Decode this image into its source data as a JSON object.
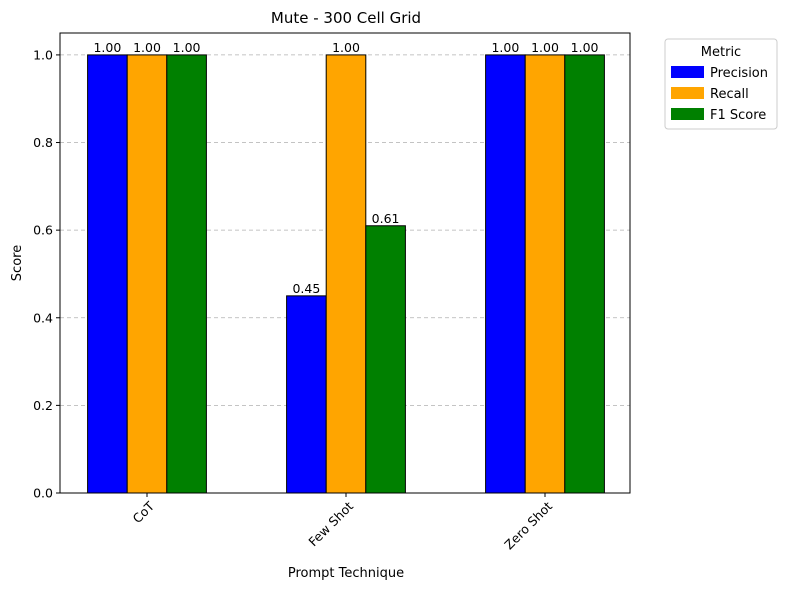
{
  "chart_data": {
    "type": "bar",
    "title": "Mute - 300 Cell Grid",
    "xlabel": "Prompt Technique",
    "ylabel": "Score",
    "categories": [
      "CoT",
      "Few Shot",
      "Zero Shot"
    ],
    "ylim": [
      0,
      1.05
    ],
    "yticks": [
      "0.0",
      "0.2",
      "0.4",
      "0.6",
      "0.8",
      "1.0"
    ],
    "grid": "y-dashed",
    "legend": {
      "title": "Metric",
      "placement": "outside-top-right"
    },
    "series": [
      {
        "name": "Precision",
        "color": "#0000ff",
        "values": [
          1.0,
          0.45,
          1.0
        ],
        "labels": [
          "1.00",
          "0.45",
          "1.00"
        ]
      },
      {
        "name": "Recall",
        "color": "#ffa500",
        "values": [
          1.0,
          1.0,
          1.0
        ],
        "labels": [
          "1.00",
          "1.00",
          "1.00"
        ]
      },
      {
        "name": "F1 Score",
        "color": "#008000",
        "values": [
          1.0,
          0.61,
          1.0
        ],
        "labels": [
          "1.00",
          "0.61",
          "1.00"
        ]
      }
    ]
  }
}
